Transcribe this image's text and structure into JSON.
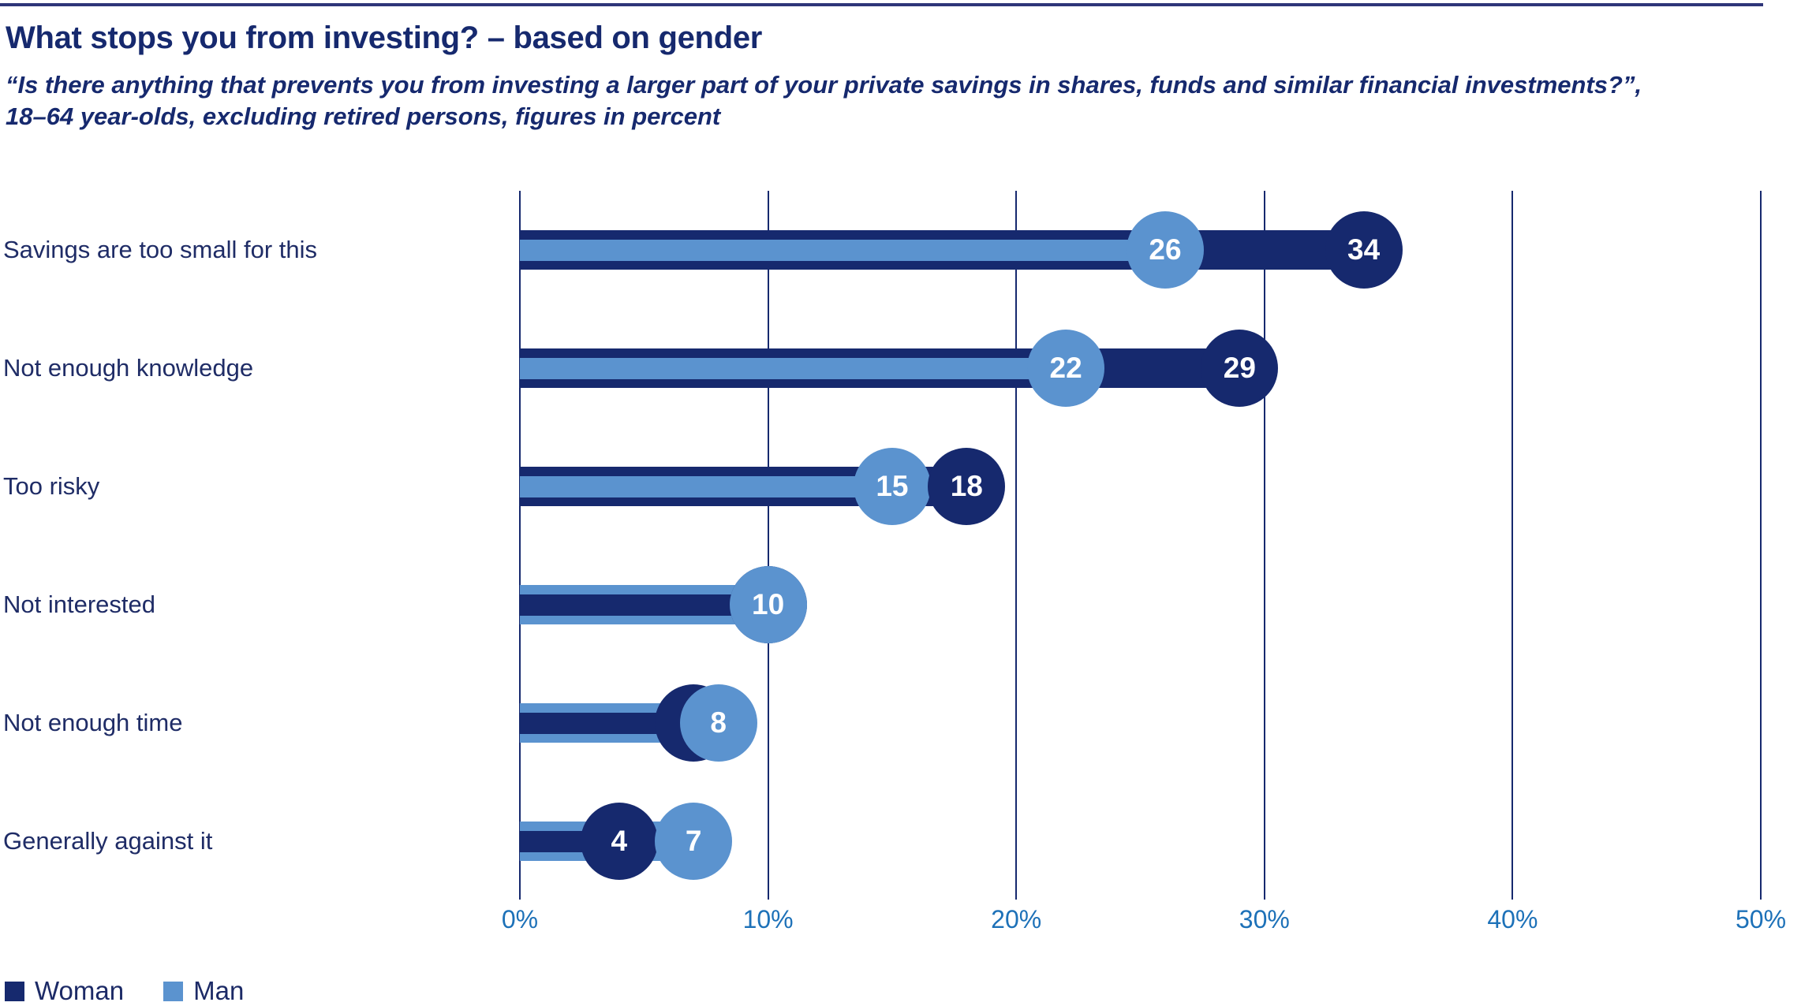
{
  "page": {
    "title": "What stops you from investing? – based on gender",
    "subtitle_lines": [
      "“Is there anything that prevents you from investing a larger part of your private savings in shares, funds and similar financial investments?”,",
      "18–64 year-olds, excluding retired persons, figures in percent"
    ]
  },
  "chart_data": {
    "type": "bar",
    "variant": "horizontal-lollipop",
    "title": "What stops you from investing? – based on gender",
    "categories": [
      "Savings are too small for this",
      "Not enough knowledge",
      "Too risky",
      "Not interested",
      "Not enough time",
      "Generally against it"
    ],
    "series": [
      {
        "name": "Woman",
        "color": "#16296e",
        "values": [
          34,
          29,
          18,
          10,
          7,
          4
        ]
      },
      {
        "name": "Man",
        "color": "#5b93cf",
        "values": [
          26,
          22,
          15,
          10,
          8,
          7
        ]
      }
    ],
    "xlabel": "",
    "ylabel": "",
    "xlim": [
      0,
      50
    ],
    "xticks": [
      0,
      10,
      20,
      30,
      40,
      50
    ],
    "xtick_labels": [
      "0%",
      "10%",
      "20%",
      "30%",
      "40%",
      "50%"
    ],
    "grid": true,
    "legend_position": "bottom-left",
    "colors": {
      "axis_label": "#1d71b8",
      "gridline": "#16296e",
      "value_label": "#ffffff",
      "text": "#1f2c66",
      "top_border": "#2e3579"
    }
  }
}
